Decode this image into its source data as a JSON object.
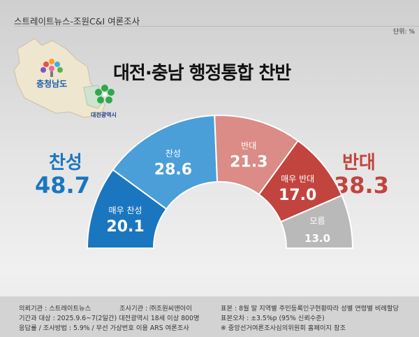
{
  "header": {
    "source": "스트레이트뉴스-조원C&I 여론조사",
    "unit": "단위: %"
  },
  "title": "대전·충남 행정통합 찬반",
  "map": {
    "region1": "충청남도",
    "region2": "대전광역시"
  },
  "summary": {
    "support_label": "찬성",
    "support_value": "48.7",
    "oppose_label": "반대",
    "oppose_value": "38.3"
  },
  "chart_data": {
    "type": "pie",
    "subtype": "half-donut",
    "title": "대전·충남 행정통합 찬반",
    "unit": "%",
    "categories": [
      "매우 찬성",
      "찬성",
      "반대",
      "매우 반대",
      "모름"
    ],
    "values": [
      20.1,
      28.6,
      21.3,
      17.0,
      13.0
    ],
    "labels": [
      "20.1",
      "28.6",
      "21.3",
      "17.0",
      "13.0"
    ],
    "colors": [
      "#1b76c0",
      "#4a9fd8",
      "#db8c87",
      "#c2443e",
      "#b9b9b9"
    ]
  },
  "footer": {
    "col1": [
      "의뢰기관 : 스트레이트뉴스",
      "기간과 대상 : 2025.9.6~7(2일간) 대전광역시  18세 이상 800명",
      "응답률 / 조사방법 : 5.9% / 무선 가상번호 이용 ARS 여론조사"
    ],
    "col1b": "조사기관 : ㈜조원씨앤아이",
    "col2": [
      "표본 : 8월 말 지역별 주민등록인구현황따라 성별 연령별 비례할당",
      "표본오차 : ±3.5%p (95% 신뢰수준)",
      "※ 중앙선거여론조사심의위원회 홈페이지 참조"
    ]
  }
}
